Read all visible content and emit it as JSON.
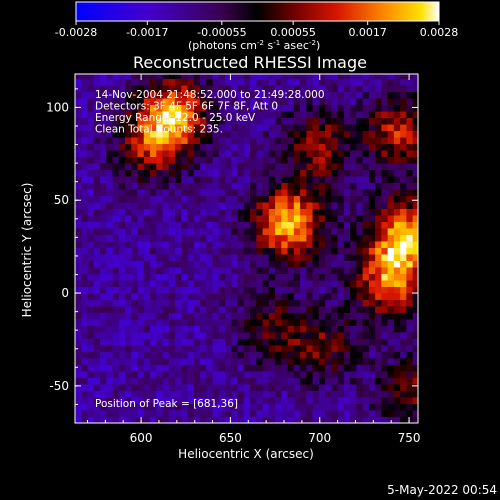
{
  "chart_data": {
    "type": "heatmap",
    "title": "Reconstructed RHESSI Image",
    "xlabel": "Heliocentric X (arcsec)",
    "ylabel": "Heliocentric Y (arcsec)",
    "xlim": [
      563,
      755
    ],
    "ylim": [
      -70,
      118
    ],
    "x_ticks": [
      600,
      650,
      700,
      750
    ],
    "y_ticks": [
      -50,
      0,
      50,
      100
    ],
    "colorbar": {
      "ticks": [
        "-0.0028",
        "-0.0017",
        "-0.00055",
        "0.00055",
        "0.0017",
        "0.0028"
      ],
      "tick_values": [
        -0.0028,
        -0.0017,
        -0.00055,
        0.00055,
        0.0017,
        0.0028
      ],
      "label_main": "(photons cm",
      "label_exp1": "-2",
      "label_mid1": " s",
      "label_exp2": "-1",
      "label_mid2": " asec",
      "label_exp3": "-2",
      "label_end": ")"
    },
    "annotations": [
      "14-Nov-2004 21:48:52.000 to 21:49:28.000",
      "Detectors: 3F 4F 5F 6F 7F 8F, Att 0",
      "Energy Range: 12.0 - 25.0 keV",
      "Clean     Total Counts: 235."
    ],
    "peak_text": "Position of Peak = [681,36]",
    "peak": [
      681,
      36
    ],
    "sources": [
      {
        "x": 681,
        "y": 36,
        "value": 0.0028
      },
      {
        "x": 617,
        "y": 96,
        "value": 0.0023
      },
      {
        "x": 604,
        "y": 78,
        "value": 0.0016
      },
      {
        "x": 746,
        "y": 30,
        "value": 0.0026
      },
      {
        "x": 737,
        "y": 4,
        "value": 0.0022
      },
      {
        "x": 743,
        "y": 85,
        "value": 0.0018
      },
      {
        "x": 697,
        "y": 78,
        "value": 0.0015
      },
      {
        "x": 700,
        "y": -30,
        "value": 0.0012
      },
      {
        "x": 670,
        "y": -20,
        "value": 0.0011
      },
      {
        "x": 750,
        "y": -55,
        "value": 0.0013
      }
    ]
  },
  "footer": {
    "timestamp": "5-May-2022 00:54"
  }
}
